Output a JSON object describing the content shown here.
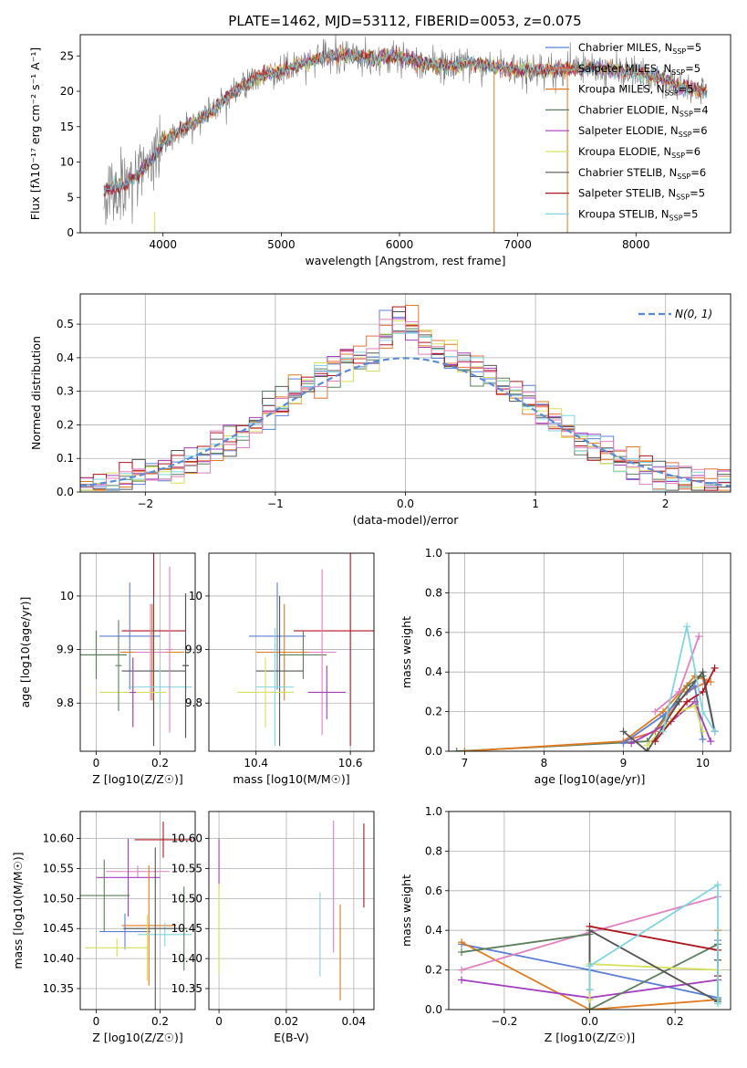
{
  "figure_title": "PLATE=1462, MJD=53112, FIBERID=0053, z=0.075",
  "colors": {
    "Chabrier MILES": "#5b7fd6",
    "Salpeter MILES": "#e8703a",
    "Kroupa MILES": "#e07a1f",
    "Chabrier ELODIE": "#5a7f5a",
    "Salpeter ELODIE": "#a33fbf",
    "Kroupa ELODIE": "#d6e05a",
    "Chabrier STELIB": "#555555",
    "Salpeter STELIB": "#b0141e",
    "Kroupa STELIB": "#7fd6e0",
    "pink": "#e27fc0",
    "normal": "#5b8bd6"
  },
  "chart_data": [
    {
      "id": "spectrum",
      "type": "line",
      "title": "PLATE=1462, MJD=53112, FIBERID=0053, z=0.075",
      "xlabel": "wavelength [Angstrom, rest frame]",
      "ylabel": "Flux [fλ10⁻¹⁷ erg cm⁻² s⁻¹ A⁻¹]",
      "xlim": [
        3300,
        8800
      ],
      "ylim": [
        0,
        28
      ],
      "xticks": [
        4000,
        5000,
        6000,
        7000,
        8000
      ],
      "yticks": [
        0,
        5,
        10,
        15,
        20,
        25
      ],
      "grid": false,
      "legend_position": "top-right",
      "continuum": {
        "x": [
          3500,
          3700,
          3900,
          4000,
          4200,
          4400,
          4600,
          4800,
          5000,
          5200,
          5400,
          5600,
          5800,
          6000,
          6200,
          6400,
          6600,
          6800,
          7000,
          7200,
          7400,
          7600,
          7800,
          8000,
          8200,
          8400,
          8600
        ],
        "y": [
          6,
          7,
          10,
          13,
          15,
          17,
          20,
          22,
          23,
          24,
          25,
          25,
          24.5,
          25,
          24,
          23.5,
          24,
          23.5,
          23,
          23,
          23,
          23.5,
          23,
          22.5,
          22,
          20.5,
          20
        ]
      },
      "series": [
        {
          "name": "Chabrier MILES, N_SSP=5",
          "color_key": "Chabrier MILES"
        },
        {
          "name": "Salpeter MILES, N_SSP=5",
          "color_key": "Salpeter MILES"
        },
        {
          "name": "Kroupa MILES, N_SSP=5",
          "color_key": "Kroupa MILES"
        },
        {
          "name": "Chabrier ELODIE, N_SSP=4",
          "color_key": "Chabrier ELODIE"
        },
        {
          "name": "Salpeter ELODIE, N_SSP=6",
          "color_key": "Salpeter ELODIE"
        },
        {
          "name": "Kroupa ELODIE, N_SSP=6",
          "color_key": "Kroupa ELODIE"
        },
        {
          "name": "Chabrier STELIB, N_SSP=6",
          "color_key": "Chabrier STELIB"
        },
        {
          "name": "Salpeter STELIB, N_SSP=5",
          "color_key": "Salpeter STELIB"
        },
        {
          "name": "Kroupa STELIB, N_SSP=5",
          "color_key": "Kroupa STELIB"
        }
      ]
    },
    {
      "id": "residuals",
      "type": "bar",
      "xlabel": "(data-model)/error",
      "ylabel": "Normed distribution",
      "xlim": [
        -2.5,
        2.5
      ],
      "ylim": [
        0,
        0.59
      ],
      "xticks": [
        -2,
        -1,
        0,
        1,
        2
      ],
      "yticks": [
        0.0,
        0.1,
        0.2,
        0.3,
        0.4,
        0.5
      ],
      "grid": true,
      "legend_position": "top-right",
      "normal_label": "N(0, 1)",
      "bin_width": 0.1
    },
    {
      "id": "age-vs-Z",
      "type": "scatter",
      "xlabel": "Z [log10(Z/Z☉)]",
      "ylabel": "age [log10(age/yr)]",
      "xlim": [
        -0.05,
        0.31
      ],
      "ylim": [
        9.71,
        10.08
      ],
      "xticks": [
        0.0,
        0.2
      ],
      "yticks": [
        9.8,
        9.9,
        10.0
      ],
      "grid": true,
      "points": [
        {
          "x": 0.18,
          "y": 9.935,
          "xerr": 0.1,
          "yerr": 0.215,
          "color_key": "Salpeter STELIB"
        },
        {
          "x": 0.105,
          "y": 9.925,
          "xerr": 0.095,
          "yerr": 0.1,
          "color_key": "Chabrier MILES"
        },
        {
          "x": 0.0,
          "y": 9.89,
          "xerr": 0.095,
          "yerr": 0.045,
          "color_key": "Chabrier ELODIE"
        },
        {
          "x": 0.0,
          "y": 9.89,
          "xerr": 0.095,
          "yerr": 0.045,
          "color_key": "Chabrier ELODIE"
        },
        {
          "x": 0.175,
          "y": 9.895,
          "xerr": 0.1,
          "yerr": 0.09,
          "color_key": "Kroupa MILES"
        },
        {
          "x": 0.17,
          "y": 9.895,
          "xerr": 0.05,
          "yerr": 0.09,
          "color_key": "pink"
        },
        {
          "x": 0.18,
          "y": 9.86,
          "xerr": 0.1,
          "yerr": 0.14,
          "color_key": "Chabrier STELIB"
        },
        {
          "x": 0.115,
          "y": 9.82,
          "xerr": 0.105,
          "yerr": 0.065,
          "color_key": "Kroupa ELODIE"
        },
        {
          "x": 0.2,
          "y": 9.83,
          "xerr": 0.1,
          "yerr": 0.04,
          "color_key": "Kroupa STELIB"
        },
        {
          "x": 0.28,
          "y": 9.87,
          "xerr": 0.01,
          "yerr": 0.135,
          "color_key": "Chabrier ELODIE"
        },
        {
          "x": 0.28,
          "y": 9.87,
          "xerr": 0.01,
          "yerr": 0.135,
          "color_key": "Chabrier STELIB"
        },
        {
          "x": 0.115,
          "y": 9.82,
          "xerr": 0.01,
          "yerr": 0.065,
          "color_key": "Salpeter ELODIE"
        },
        {
          "x": 0.07,
          "y": 9.87,
          "xerr": 0.01,
          "yerr": 0.085,
          "color_key": "Chabrier ELODIE"
        },
        {
          "x": 0.23,
          "y": 9.9,
          "xerr": 0.01,
          "yerr": 0.155,
          "color_key": "pink"
        }
      ]
    },
    {
      "id": "age-vs-mass",
      "type": "scatter",
      "xlabel": "mass [log10(M/M☉)]",
      "xlim": [
        10.3,
        10.65
      ],
      "ylim": [
        9.71,
        10.08
      ],
      "xticks": [
        10.4,
        10.6
      ],
      "yticks": [
        9.8,
        9.9,
        10.0
      ],
      "grid": true,
      "points": [
        {
          "x": 10.6,
          "y": 9.935,
          "xerr": 0.12,
          "yerr": 0.215,
          "color_key": "Salpeter STELIB"
        },
        {
          "x": 10.445,
          "y": 9.925,
          "xerr": 0.06,
          "yerr": 0.1,
          "color_key": "Chabrier MILES"
        },
        {
          "x": 10.5,
          "y": 9.89,
          "xerr": 0.05,
          "yerr": 0.045,
          "color_key": "Chabrier ELODIE"
        },
        {
          "x": 10.46,
          "y": 9.895,
          "xerr": 0.06,
          "yerr": 0.09,
          "color_key": "Kroupa MILES"
        },
        {
          "x": 10.54,
          "y": 9.895,
          "xerr": 0.03,
          "yerr": 0.155,
          "color_key": "pink"
        },
        {
          "x": 10.45,
          "y": 9.86,
          "xerr": 0.05,
          "yerr": 0.14,
          "color_key": "Chabrier STELIB"
        },
        {
          "x": 10.42,
          "y": 9.82,
          "xerr": 0.06,
          "yerr": 0.065,
          "color_key": "Kroupa ELODIE"
        },
        {
          "x": 10.44,
          "y": 9.83,
          "xerr": 0.04,
          "yerr": 0.11,
          "color_key": "Kroupa STELIB"
        },
        {
          "x": 10.55,
          "y": 9.82,
          "xerr": 0.04,
          "yerr": 0.05,
          "color_key": "Salpeter ELODIE"
        }
      ]
    },
    {
      "id": "weight-vs-age",
      "type": "line",
      "xlabel": "age [log10(age/yr)]",
      "ylabel": "mass weight",
      "xlim": [
        6.8,
        10.35
      ],
      "ylim": [
        0,
        1
      ],
      "xticks": [
        7,
        8,
        9,
        10
      ],
      "yticks": [
        0.0,
        0.2,
        0.4,
        0.6,
        0.8,
        1.0
      ],
      "grid": true,
      "series": [
        {
          "color_key": "Chabrier ELODIE",
          "x": [
            6.9,
            9.3,
            9.8,
            10.0,
            10.15
          ],
          "y": [
            0.0,
            0.05,
            0.33,
            0.38,
            0.1
          ]
        },
        {
          "color_key": "Kroupa MILES",
          "x": [
            7.0,
            9.0,
            9.5,
            9.9,
            10.1
          ],
          "y": [
            0.0,
            0.05,
            0.2,
            0.38,
            0.35
          ]
        },
        {
          "color_key": "Salpeter MILES",
          "x": [
            9.0,
            9.4,
            9.8,
            10.05
          ],
          "y": [
            0.05,
            0.1,
            0.3,
            0.35
          ]
        },
        {
          "color_key": "Chabrier MILES",
          "x": [
            9.0,
            9.5,
            9.9,
            10.0
          ],
          "y": [
            0.04,
            0.18,
            0.33,
            0.06
          ]
        },
        {
          "color_key": "Salpeter ELODIE",
          "x": [
            9.1,
            9.6,
            9.9,
            10.1
          ],
          "y": [
            0.04,
            0.15,
            0.25,
            0.05
          ]
        },
        {
          "color_key": "Kroupa ELODIE",
          "x": [
            9.3,
            9.7,
            9.9,
            10.0
          ],
          "y": [
            0.03,
            0.2,
            0.23,
            0.1
          ]
        },
        {
          "color_key": "Chabrier STELIB",
          "x": [
            9.0,
            9.3,
            9.7,
            10.0,
            10.15
          ],
          "y": [
            0.1,
            0.0,
            0.25,
            0.4,
            0.1
          ]
        },
        {
          "color_key": "Salpeter STELIB",
          "x": [
            9.4,
            9.8,
            10.0,
            10.15
          ],
          "y": [
            0.05,
            0.25,
            0.3,
            0.42
          ]
        },
        {
          "color_key": "pink",
          "x": [
            9.4,
            9.7,
            9.95
          ],
          "y": [
            0.2,
            0.3,
            0.58
          ]
        },
        {
          "color_key": "Kroupa STELIB",
          "x": [
            9.5,
            9.8,
            10.0,
            10.15
          ],
          "y": [
            0.1,
            0.63,
            0.2,
            0.1
          ]
        }
      ]
    },
    {
      "id": "mass-vs-Z",
      "type": "scatter",
      "xlabel": "Z [log10(Z/Z☉)]",
      "ylabel": "mass [log10(M/M☉)]",
      "xlim": [
        -0.05,
        0.31
      ],
      "ylim": [
        10.315,
        10.645
      ],
      "xticks": [
        0.0,
        0.2
      ],
      "yticks": [
        10.35,
        10.4,
        10.45,
        10.5,
        10.55,
        10.6
      ],
      "grid": true,
      "points": [
        {
          "x": 0.21,
          "y": 10.598,
          "xerr": 0.09,
          "yerr": 0.03,
          "color_key": "Salpeter STELIB"
        },
        {
          "x": 0.13,
          "y": 10.545,
          "xerr": 0.1,
          "yerr": 0.01,
          "color_key": "pink"
        },
        {
          "x": 0.1,
          "y": 10.535,
          "xerr": 0.1,
          "yerr": 0.065,
          "color_key": "Salpeter ELODIE"
        },
        {
          "x": 0.025,
          "y": 10.505,
          "xerr": 0.08,
          "yerr": 0.06,
          "color_key": "Chabrier ELODIE"
        },
        {
          "x": 0.09,
          "y": 10.445,
          "xerr": 0.08,
          "yerr": 0.03,
          "color_key": "Chabrier MILES"
        },
        {
          "x": 0.165,
          "y": 10.455,
          "xerr": 0.085,
          "yerr": 0.1,
          "color_key": "Kroupa MILES"
        },
        {
          "x": 0.215,
          "y": 10.44,
          "xerr": 0.085,
          "yerr": 0.02,
          "color_key": "Kroupa STELIB"
        },
        {
          "x": 0.185,
          "y": 10.45,
          "xerr": 0.1,
          "yerr": 0.135,
          "color_key": "Chabrier STELIB"
        },
        {
          "x": 0.065,
          "y": 10.418,
          "xerr": 0.1,
          "yerr": 0.015,
          "color_key": "Kroupa ELODIE"
        },
        {
          "x": 0.275,
          "y": 10.45,
          "xerr": 0.01,
          "yerr": 0.07,
          "color_key": "Chabrier ELODIE"
        },
        {
          "x": 0.16,
          "y": 10.418,
          "xerr": 0.005,
          "yerr": 0.055,
          "color_key": "Kroupa ELODIE"
        }
      ]
    },
    {
      "id": "mass-vs-EBV",
      "type": "scatter",
      "xlabel": "E(B-V)",
      "xlim": [
        -0.003,
        0.046
      ],
      "ylim": [
        10.315,
        10.645
      ],
      "xticks": [
        0.0,
        0.02,
        0.04
      ],
      "yticks": [
        10.35,
        10.4,
        10.45,
        10.5,
        10.55,
        10.6
      ],
      "grid": true,
      "points": [
        {
          "x": 0.0,
          "y": 10.56,
          "xerr": 0.0,
          "yerr": 0.04,
          "color_key": "Salpeter ELODIE"
        },
        {
          "x": 0.0,
          "y": 10.45,
          "xerr": 0.0,
          "yerr": 0.075,
          "color_key": "Kroupa ELODIE"
        },
        {
          "x": 0.043,
          "y": 10.555,
          "xerr": 0.0,
          "yerr": 0.07,
          "color_key": "Salpeter STELIB"
        },
        {
          "x": 0.034,
          "y": 10.52,
          "xerr": 0.0,
          "yerr": 0.11,
          "color_key": "pink"
        },
        {
          "x": 0.03,
          "y": 10.44,
          "xerr": 0.0,
          "yerr": 0.07,
          "color_key": "Kroupa STELIB"
        },
        {
          "x": 0.036,
          "y": 10.41,
          "xerr": 0.0,
          "yerr": 0.08,
          "color_key": "Kroupa MILES"
        }
      ]
    },
    {
      "id": "weight-vs-Z",
      "type": "line",
      "xlabel": "Z [log10(Z/Z☉)]",
      "ylabel": "mass weight",
      "xlim": [
        -0.33,
        0.33
      ],
      "ylim": [
        0,
        1
      ],
      "xticks": [
        -0.2,
        0.0,
        0.2
      ],
      "yticks": [
        0.0,
        0.2,
        0.4,
        0.6,
        0.8,
        1.0
      ],
      "grid": true,
      "series": [
        {
          "color_key": "Chabrier MILES",
          "x": [
            -0.3,
            0.0,
            0.3,
            0.3
          ],
          "y": [
            0.33,
            0.2,
            0.06,
            0.35
          ]
        },
        {
          "color_key": "Kroupa MILES",
          "x": [
            -0.3,
            0.0,
            0.3,
            0.3
          ],
          "y": [
            0.34,
            0.0,
            0.05,
            0.4
          ]
        },
        {
          "color_key": "pink",
          "x": [
            -0.3,
            0.0,
            0.3
          ],
          "y": [
            0.2,
            0.39,
            0.57
          ]
        },
        {
          "color_key": "Salpeter ELODIE",
          "x": [
            -0.3,
            0.0,
            0.3
          ],
          "y": [
            0.15,
            0.06,
            0.15
          ]
        },
        {
          "color_key": "Chabrier ELODIE",
          "x": [
            -0.3,
            0.0,
            0.0,
            0.3,
            0.3
          ],
          "y": [
            0.29,
            0.38,
            0.0,
            0.33,
            0.05
          ]
        },
        {
          "color_key": "Kroupa ELODIE",
          "x": [
            0.0,
            0.0,
            0.3
          ],
          "y": [
            0.05,
            0.23,
            0.2
          ]
        },
        {
          "color_key": "Salpeter STELIB",
          "x": [
            0.0,
            0.3,
            0.3
          ],
          "y": [
            0.42,
            0.3,
            0.17
          ]
        },
        {
          "color_key": "Chabrier STELIB",
          "x": [
            0.0,
            0.0,
            0.3,
            0.3
          ],
          "y": [
            0.1,
            0.4,
            0.04,
            0.25
          ]
        },
        {
          "color_key": "Kroupa STELIB",
          "x": [
            0.0,
            0.0,
            0.3,
            0.3
          ],
          "y": [
            0.1,
            0.22,
            0.63,
            0.03
          ]
        }
      ]
    }
  ]
}
